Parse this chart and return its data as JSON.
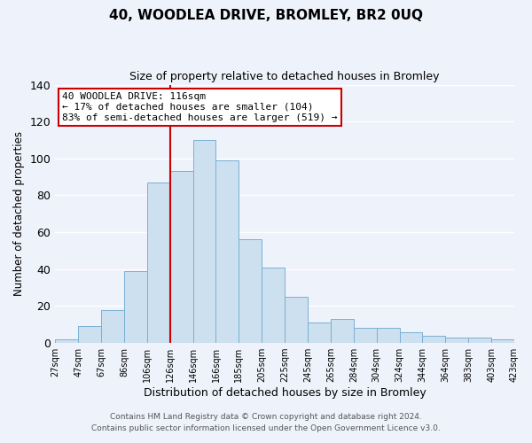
{
  "title": "40, WOODLEA DRIVE, BROMLEY, BR2 0UQ",
  "subtitle": "Size of property relative to detached houses in Bromley",
  "xlabel": "Distribution of detached houses by size in Bromley",
  "ylabel": "Number of detached properties",
  "bar_labels": [
    "27sqm",
    "47sqm",
    "67sqm",
    "86sqm",
    "106sqm",
    "126sqm",
    "146sqm",
    "166sqm",
    "185sqm",
    "205sqm",
    "225sqm",
    "245sqm",
    "265sqm",
    "284sqm",
    "304sqm",
    "324sqm",
    "344sqm",
    "364sqm",
    "383sqm",
    "403sqm",
    "423sqm"
  ],
  "bar_heights": [
    2,
    9,
    18,
    39,
    87,
    93,
    110,
    99,
    56,
    41,
    25,
    11,
    13,
    8,
    8,
    6,
    4,
    3,
    3,
    2
  ],
  "bar_color": "#cde0f0",
  "bar_edge_color": "#7ab0d4",
  "vline_color": "#cc0000",
  "annotation_title": "40 WOODLEA DRIVE: 116sqm",
  "annotation_line1": "← 17% of detached houses are smaller (104)",
  "annotation_line2": "83% of semi-detached houses are larger (519) →",
  "annotation_box_color": "#ffffff",
  "annotation_box_edge": "#cc0000",
  "ylim": [
    0,
    140
  ],
  "footer1": "Contains HM Land Registry data © Crown copyright and database right 2024.",
  "footer2": "Contains public sector information licensed under the Open Government Licence v3.0.",
  "background_color": "#eef2fb",
  "grid_color": "#ffffff"
}
